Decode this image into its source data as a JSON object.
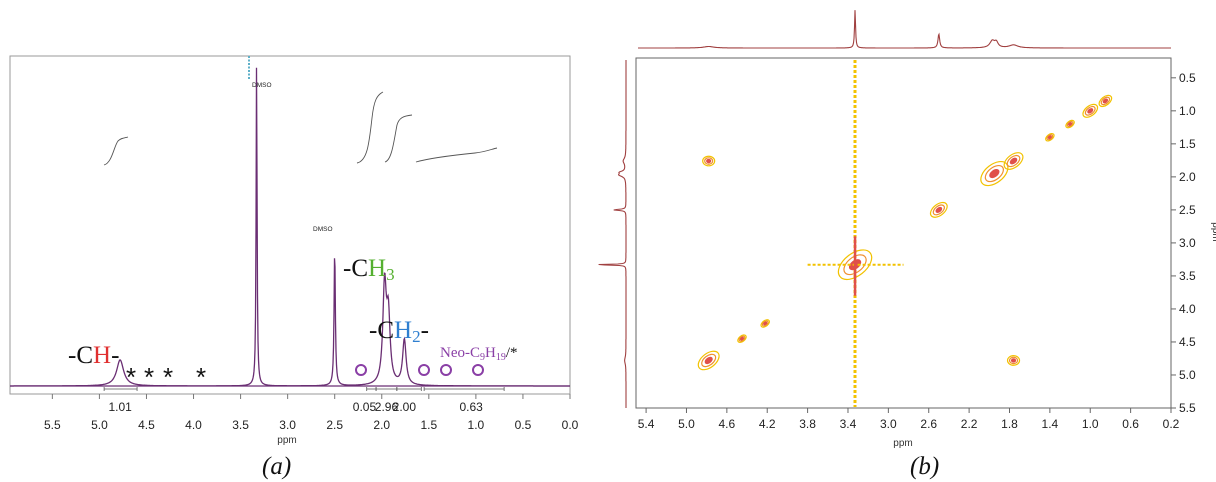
{
  "panel_a": {
    "caption": "(a)",
    "peak_labels": {
      "ch_prefix": "-C",
      "ch_h": "H",
      "ch_suffix": "-",
      "ch3_prefix": "-C",
      "ch3_h": "H",
      "ch3_sub": "3",
      "ch2_prefix": "-C",
      "ch2_h": "H",
      "ch2_sub": "2",
      "ch2_suffix": "-",
      "neo_prefix": "Neo-C",
      "neo_sub1": "9",
      "neo_h": "H",
      "neo_sub2": "19",
      "neo_suffix": "/*"
    },
    "asterisk": "*",
    "colors": {
      "spectrum": "#6a2e73",
      "ch_h": "#e03030",
      "ch3_h": "#55b030",
      "ch2_h": "#2f7fd0",
      "neo": "#8a3fa6",
      "circle": "#8a3fa6"
    }
  },
  "panel_b": {
    "caption": "(b)",
    "colors": {
      "projection": "#a04040",
      "contour_outer": "#f2c200",
      "contour_inner": "#e0504a"
    }
  },
  "chart_data": [
    {
      "type": "line",
      "xlabel": "ppm",
      "xlim": [
        5.95,
        0.0
      ],
      "x_ticks": [
        "5.5",
        "5.0",
        "4.5",
        "4.0",
        "3.5",
        "3.0",
        "2.5",
        "2.0",
        "1.5",
        "1.0",
        "0.5",
        "0.0"
      ],
      "annotations": [
        "DMSO",
        "DMSO"
      ],
      "peaks": [
        {
          "ppm": 4.78,
          "height": 0.08
        },
        {
          "ppm": 3.33,
          "height": 1.0
        },
        {
          "ppm": 2.5,
          "height": 0.42
        },
        {
          "ppm": 1.97,
          "height": 0.3
        },
        {
          "ppm": 1.93,
          "height": 0.2
        },
        {
          "ppm": 1.76,
          "height": 0.14
        }
      ],
      "integrals": [
        {
          "label": "1.01",
          "ppm": 4.78
        },
        {
          "label": "0.05",
          "ppm": 2.12
        },
        {
          "label": "2.96",
          "ppm": 1.95
        },
        {
          "label": "2.00",
          "ppm": 1.76
        },
        {
          "label": "0.63",
          "ppm": 1.05
        }
      ]
    },
    {
      "type": "heatmap",
      "xlabel": "ppm",
      "ylabel": "ppm",
      "xlim": [
        5.5,
        0.2
      ],
      "ylim": [
        0.2,
        5.5
      ],
      "x_ticks": [
        "5.4",
        "5.0",
        "4.6",
        "4.2",
        "3.8",
        "3.4",
        "3.0",
        "2.6",
        "2.2",
        "1.8",
        "1.4",
        "1.0",
        "0.6",
        "0.2"
      ],
      "y_ticks": [
        "0.5",
        "1.0",
        "1.5",
        "2.0",
        "2.5",
        "3.0",
        "3.5",
        "4.0",
        "4.5",
        "5.0",
        "5.5"
      ],
      "cross_peaks": [
        {
          "x": 3.33,
          "y": 3.33
        },
        {
          "x": 1.95,
          "y": 1.95
        },
        {
          "x": 1.76,
          "y": 1.76
        },
        {
          "x": 2.5,
          "y": 2.5
        },
        {
          "x": 4.78,
          "y": 4.78
        },
        {
          "x": 4.78,
          "y": 1.76
        },
        {
          "x": 1.76,
          "y": 4.78
        },
        {
          "x": 4.45,
          "y": 4.45
        },
        {
          "x": 4.22,
          "y": 4.22
        },
        {
          "x": 1.0,
          "y": 1.0
        },
        {
          "x": 0.85,
          "y": 0.85
        },
        {
          "x": 1.4,
          "y": 1.4
        },
        {
          "x": 1.2,
          "y": 1.2
        }
      ]
    }
  ]
}
